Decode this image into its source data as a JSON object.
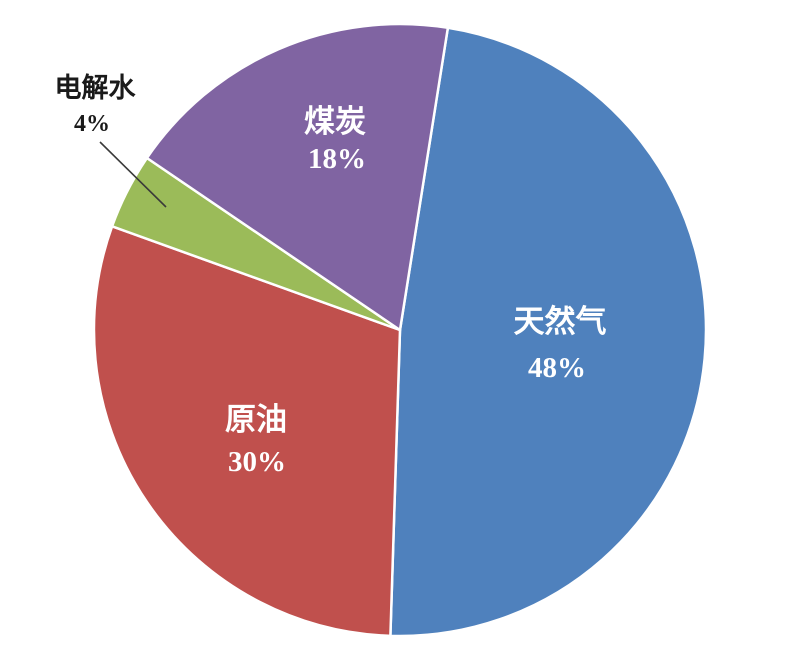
{
  "chart_data": {
    "type": "pie",
    "unit": "%",
    "direction": "clockwise",
    "start_angle_deg": 9,
    "background": "#FFFFFF",
    "separator_color": "#FFFFFF",
    "legend": "none",
    "slices": [
      {
        "id": "natural-gas",
        "label": "天然气",
        "value": 48,
        "pct_text": "48%",
        "color": "#4F81BD",
        "label_position": "inside"
      },
      {
        "id": "crude-oil",
        "label": "原油",
        "value": 30,
        "pct_text": "30%",
        "color": "#C0504D",
        "label_position": "inside"
      },
      {
        "id": "electrolysis",
        "label": "电解水",
        "value": 4,
        "pct_text": "4%",
        "color": "#9BBB59",
        "label_position": "outside-with-leader-line"
      },
      {
        "id": "coal",
        "label": "煤炭",
        "value": 18,
        "pct_text": "18%",
        "color": "#8064A2",
        "label_position": "inside"
      }
    ]
  }
}
